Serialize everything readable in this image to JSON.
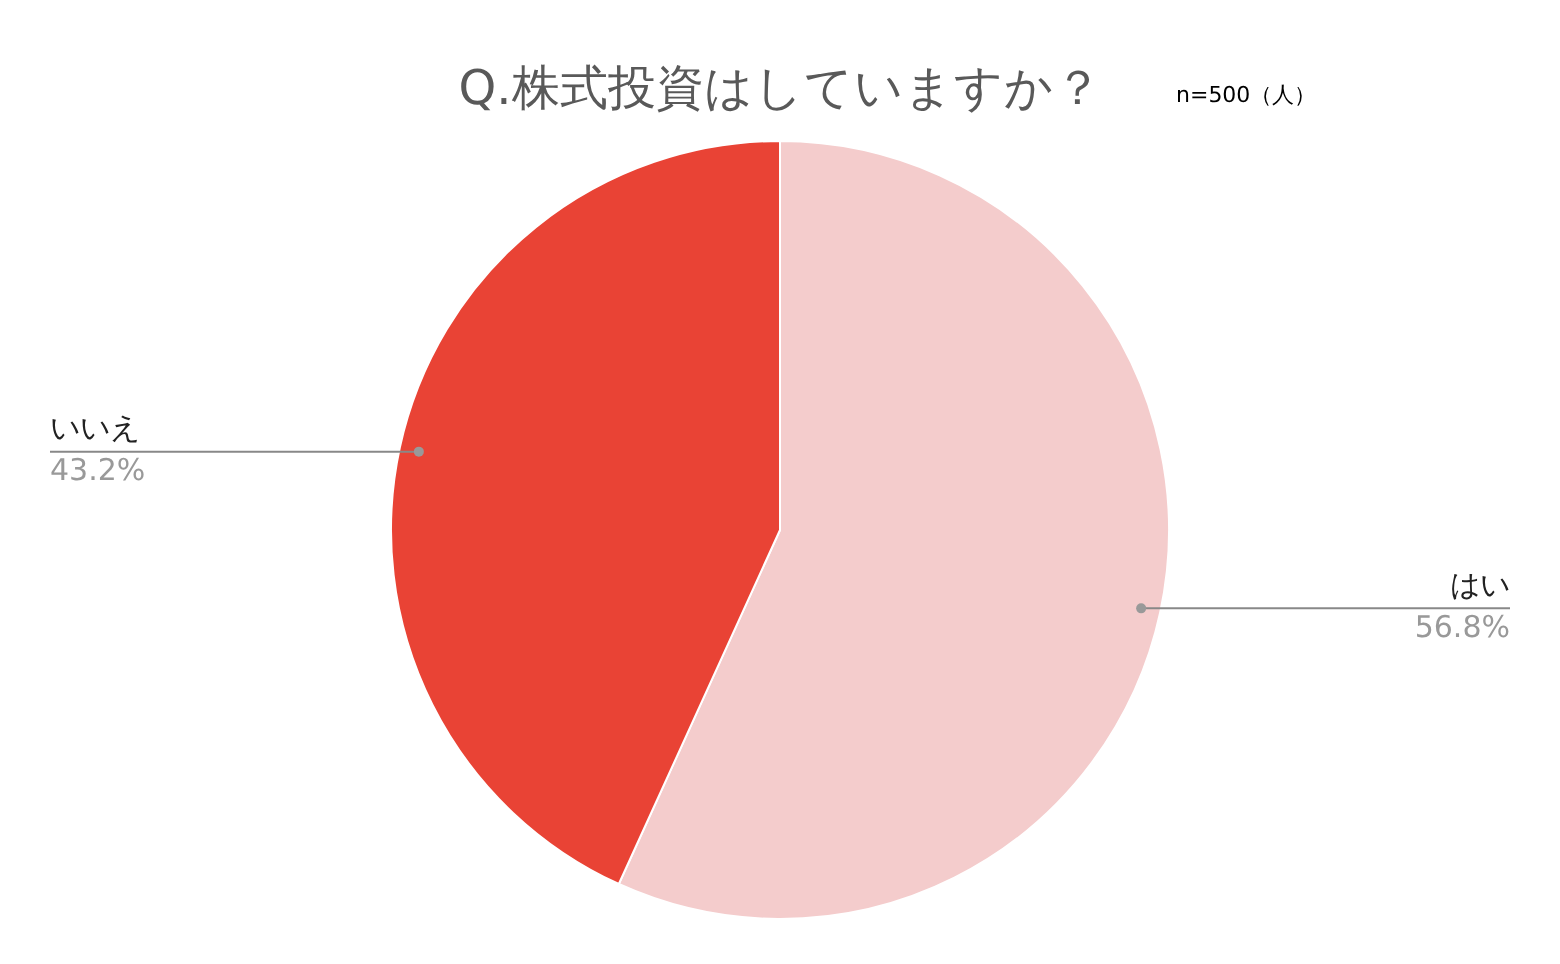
{
  "chart_data": {
    "type": "pie",
    "title": "Q.株式投資はしていますか？",
    "subtitle": "n=500（人）",
    "categories": [
      "はい",
      "いいえ"
    ],
    "values": [
      56.8,
      43.2
    ],
    "colors": [
      "#f4cccc",
      "#e94335"
    ],
    "value_labels": [
      "56.8%",
      "43.2%"
    ],
    "legend": false
  }
}
